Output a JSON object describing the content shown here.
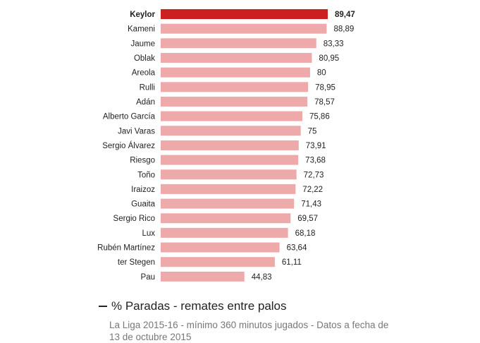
{
  "chart_data": {
    "type": "bar",
    "orientation": "horizontal",
    "title": "% Paradas - remates entre palos",
    "subtitle": "La Liga 2015-16 - mínimo 360 minutos jugados - Datos a fecha de 13 de octubre 2015",
    "categories": [
      "Keylor",
      "Kameni",
      "Jaume",
      "Oblak",
      "Areola",
      "Rulli",
      "Adán",
      "Alberto García",
      "Javi Varas",
      "Sergio Álvarez",
      "Riesgo",
      "Toño",
      "Iraizoz",
      "Guaita",
      "Sergio Rico",
      "Lux",
      "Rubén Martínez",
      "ter Stegen",
      "Pau"
    ],
    "values": [
      89.47,
      88.89,
      83.33,
      80.95,
      80,
      78.95,
      78.57,
      75.86,
      75,
      73.91,
      73.68,
      72.73,
      72.22,
      71.43,
      69.57,
      68.18,
      63.64,
      61.11,
      44.83
    ],
    "value_labels": [
      "89,47",
      "88,89",
      "83,33",
      "80,95",
      "80",
      "78,95",
      "78,57",
      "75,86",
      "75",
      "73,91",
      "73,68",
      "72,73",
      "72,22",
      "71,43",
      "69,57",
      "68,18",
      "63,64",
      "61,11",
      "44,83"
    ],
    "highlight": "Keylor",
    "colors": {
      "highlight": "#cc1f1f",
      "bar": "#eeaaaa"
    },
    "grid": false,
    "legend": "none"
  }
}
